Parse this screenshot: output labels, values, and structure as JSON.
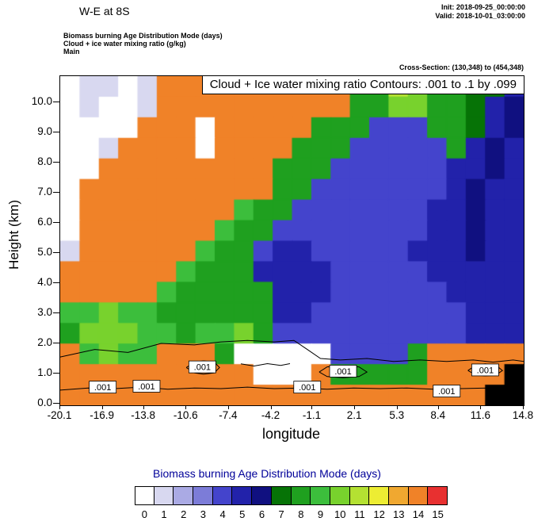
{
  "header": {
    "title": "W-E at 8S",
    "init": "Init: 2018-09-25_00:00:00",
    "valid": "Valid: 2018-10-01_03:00:00",
    "field1": "Biomass burning Age Distribution Mode   (days)",
    "field2": "Cloud + ice water mixing ratio   (g/kg)",
    "field3": "Main",
    "cross_section": "Cross-Section: (130,348) to (454,348)"
  },
  "chart_data": {
    "type": "heatmap",
    "title": "Cloud + Ice water mixing ratio Contours: .001 to .1 by .099",
    "xlabel": "longitude",
    "ylabel": "Height (km)",
    "x_ticks": [
      "-20.1",
      "-16.9",
      "-13.8",
      "-10.6",
      "-7.4",
      "-4.2",
      "-1.1",
      "2.1",
      "5.3",
      "8.4",
      "11.6",
      "14.8"
    ],
    "y_ticks": [
      "0.0",
      "1.0",
      "2.0",
      "3.0",
      "4.0",
      "5.0",
      "6.0",
      "7.0",
      "8.0",
      "9.0",
      "10.0"
    ],
    "xlim": [
      -20.1,
      14.8
    ],
    "ylim_km": [
      0,
      10.9
    ],
    "value_units": "days",
    "palette": [
      "#FFFFFF",
      "#D8D8F0",
      "#AAAAE4",
      "#7C7CD8",
      "#4444CC",
      "#2222AA",
      "#101080",
      "#067306",
      "#1FA01F",
      "#3CBE3C",
      "#78D22D",
      "#B4E132",
      "#EDED33",
      "#F0A830",
      "#F08228",
      "#E83030"
    ],
    "terrain_color": "#000000",
    "grid_shape": {
      "cols": 24,
      "rows": 16,
      "top_km": 10.9,
      "bottom_km": 0
    },
    "grid": [
      [
        0,
        1,
        1,
        0,
        1,
        14,
        14,
        14,
        14,
        14,
        14,
        14,
        14,
        14,
        14,
        8,
        8,
        11,
        10,
        8,
        8,
        7,
        7,
        5
      ],
      [
        0,
        1,
        0,
        0,
        1,
        14,
        14,
        14,
        14,
        14,
        14,
        14,
        14,
        14,
        14,
        8,
        8,
        10,
        10,
        8,
        8,
        7,
        5,
        6
      ],
      [
        0,
        0,
        0,
        0,
        14,
        14,
        14,
        0,
        14,
        14,
        14,
        14,
        14,
        8,
        8,
        8,
        4,
        4,
        4,
        8,
        8,
        7,
        5,
        6
      ],
      [
        0,
        0,
        1,
        14,
        14,
        14,
        14,
        0,
        14,
        14,
        14,
        14,
        8,
        8,
        8,
        4,
        4,
        4,
        4,
        4,
        8,
        5,
        6,
        5
      ],
      [
        0,
        0,
        14,
        14,
        14,
        14,
        14,
        14,
        14,
        14,
        14,
        8,
        8,
        8,
        4,
        4,
        4,
        4,
        4,
        4,
        5,
        5,
        6,
        5
      ],
      [
        0,
        14,
        14,
        14,
        14,
        14,
        14,
        14,
        14,
        14,
        14,
        8,
        8,
        4,
        4,
        4,
        4,
        4,
        4,
        4,
        5,
        6,
        5,
        5
      ],
      [
        0,
        14,
        14,
        14,
        14,
        14,
        14,
        14,
        14,
        9,
        8,
        8,
        4,
        4,
        4,
        4,
        4,
        4,
        4,
        5,
        5,
        6,
        5,
        5
      ],
      [
        0,
        14,
        14,
        14,
        14,
        14,
        14,
        14,
        9,
        8,
        8,
        4,
        4,
        4,
        4,
        4,
        4,
        4,
        4,
        5,
        5,
        6,
        5,
        5
      ],
      [
        1,
        14,
        14,
        14,
        14,
        14,
        14,
        9,
        8,
        8,
        4,
        5,
        5,
        4,
        4,
        4,
        4,
        4,
        5,
        5,
        5,
        6,
        5,
        5
      ],
      [
        14,
        14,
        14,
        14,
        14,
        14,
        9,
        8,
        8,
        8,
        5,
        5,
        5,
        5,
        4,
        4,
        4,
        4,
        4,
        5,
        5,
        5,
        5,
        5
      ],
      [
        14,
        14,
        14,
        14,
        14,
        9,
        8,
        8,
        8,
        8,
        8,
        5,
        5,
        5,
        4,
        4,
        4,
        4,
        4,
        4,
        5,
        5,
        5,
        5
      ],
      [
        9,
        9,
        10,
        9,
        9,
        8,
        8,
        8,
        8,
        8,
        8,
        5,
        5,
        4,
        4,
        4,
        4,
        4,
        4,
        4,
        4,
        5,
        5,
        5
      ],
      [
        8,
        10,
        10,
        10,
        9,
        9,
        8,
        9,
        9,
        10,
        8,
        4,
        4,
        4,
        4,
        4,
        4,
        4,
        4,
        4,
        4,
        5,
        5,
        5
      ],
      [
        14,
        9,
        10,
        9,
        9,
        14,
        14,
        14,
        8,
        0,
        0,
        0,
        0,
        0,
        4,
        4,
        4,
        4,
        8,
        14,
        14,
        14,
        14,
        14
      ],
      [
        14,
        14,
        14,
        14,
        14,
        14,
        14,
        14,
        14,
        14,
        0,
        0,
        0,
        14,
        8,
        8,
        8,
        8,
        8,
        14,
        14,
        14,
        14,
        -1
      ],
      [
        14,
        14,
        14,
        14,
        14,
        14,
        14,
        14,
        14,
        14,
        14,
        14,
        14,
        14,
        14,
        14,
        14,
        14,
        14,
        14,
        14,
        14,
        -1,
        -1
      ]
    ],
    "contour_field": {
      "name": "Cloud + Ice water mixing ratio",
      "units": "g/kg",
      "levels": [
        0.001,
        0.1
      ],
      "labels": [
        {
          "text": ".001",
          "lon": -16.9,
          "h": 0.55
        },
        {
          "text": ".001",
          "lon": -13.6,
          "h": 0.58
        },
        {
          "text": ".001",
          "lon": -9.4,
          "h": 1.22
        },
        {
          "text": ".001",
          "lon": -1.5,
          "h": 0.55
        },
        {
          "text": ".001",
          "lon": 1.2,
          "h": 1.08
        },
        {
          "text": ".001",
          "lon": 9.0,
          "h": 0.42
        },
        {
          "text": ".001",
          "lon": 11.9,
          "h": 1.12
        }
      ],
      "lines": [
        [
          [
            -20.1,
            1.55
          ],
          [
            -17.5,
            1.8
          ],
          [
            -15,
            1.7
          ],
          [
            -12.5,
            2.0
          ],
          [
            -10,
            1.95
          ],
          [
            -8,
            2.05
          ],
          [
            -6,
            2.1
          ],
          [
            -4,
            2.05
          ],
          [
            -2.5,
            2.1
          ],
          [
            -1.5,
            1.8
          ],
          [
            -0.5,
            1.5
          ],
          [
            1,
            1.45
          ],
          [
            3,
            1.5
          ],
          [
            5,
            1.4
          ],
          [
            7,
            1.45
          ],
          [
            9,
            1.4
          ],
          [
            11,
            1.45
          ],
          [
            12.5,
            1.38
          ],
          [
            14,
            1.45
          ],
          [
            14.8,
            1.4
          ]
        ],
        [
          [
            -20.1,
            0.45
          ],
          [
            -18,
            0.52
          ],
          [
            -16,
            0.5
          ],
          [
            -14,
            0.55
          ],
          [
            -12,
            0.48
          ],
          [
            -10,
            0.52
          ],
          [
            -8,
            0.5
          ],
          [
            -6,
            0.55
          ],
          [
            -4,
            0.5
          ],
          [
            -2,
            0.52
          ],
          [
            0,
            0.48
          ],
          [
            2,
            0.52
          ],
          [
            4,
            0.5
          ],
          [
            6,
            0.52
          ],
          [
            8,
            0.48
          ],
          [
            10,
            0.5
          ],
          [
            12,
            0.52
          ],
          [
            14,
            0.48
          ],
          [
            14.8,
            0.5
          ]
        ],
        [
          [
            -10.6,
            1.2
          ],
          [
            -10,
            1.38
          ],
          [
            -9.3,
            1.42
          ],
          [
            -8.5,
            1.38
          ],
          [
            -8.1,
            1.2
          ],
          [
            -8.5,
            1.02
          ],
          [
            -9.3,
            0.98
          ],
          [
            -10,
            1.02
          ],
          [
            -10.6,
            1.2
          ]
        ],
        [
          [
            -0.6,
            1.05
          ],
          [
            0,
            1.22
          ],
          [
            1.2,
            1.26
          ],
          [
            2.4,
            1.22
          ],
          [
            3,
            1.05
          ],
          [
            2.4,
            0.9
          ],
          [
            1.2,
            0.86
          ],
          [
            0,
            0.9
          ],
          [
            -0.6,
            1.05
          ]
        ],
        [
          [
            10.6,
            1.1
          ],
          [
            11.2,
            1.28
          ],
          [
            11.9,
            1.32
          ],
          [
            12.7,
            1.28
          ],
          [
            13.2,
            1.1
          ],
          [
            12.7,
            0.95
          ],
          [
            11.9,
            0.92
          ],
          [
            11.2,
            0.95
          ],
          [
            10.6,
            1.1
          ]
        ],
        [
          [
            -6.5,
            1.32
          ],
          [
            -5.5,
            1.25
          ],
          [
            -4.5,
            1.33
          ],
          [
            -3.5,
            1.27
          ],
          [
            -2.8,
            1.33
          ]
        ]
      ]
    },
    "legend": {
      "title": "Biomass burning Age Distribution Mode  (days)",
      "values": [
        0,
        1,
        2,
        3,
        4,
        5,
        6,
        7,
        8,
        9,
        10,
        11,
        12,
        13,
        14,
        15
      ],
      "position": "bottom"
    }
  }
}
